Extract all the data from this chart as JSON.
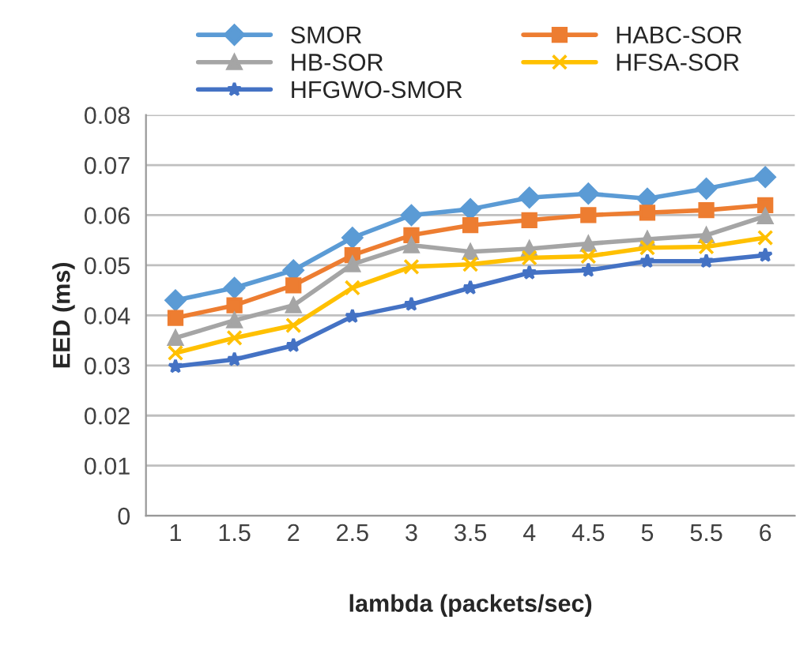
{
  "chart_data": {
    "type": "line",
    "xlabel": "lambda (packets/sec)",
    "ylabel": "EED (ms)",
    "categories": [
      "1",
      "1.5",
      "2",
      "2.5",
      "3",
      "3.5",
      "4",
      "4.5",
      "5",
      "5.5",
      "6"
    ],
    "ylim": [
      0,
      0.08
    ],
    "yticks": [
      {
        "value": 0,
        "label": "0"
      },
      {
        "value": 0.01,
        "label": "0.01"
      },
      {
        "value": 0.02,
        "label": "0.02"
      },
      {
        "value": 0.03,
        "label": "0.03"
      },
      {
        "value": 0.04,
        "label": "0.04"
      },
      {
        "value": 0.05,
        "label": "0.05"
      },
      {
        "value": 0.06,
        "label": "0.06"
      },
      {
        "value": 0.07,
        "label": "0.07"
      },
      {
        "value": 0.08,
        "label": "0.08"
      }
    ],
    "grid": "y",
    "legend": "top",
    "line_style": "solid",
    "series": [
      {
        "name": "SMOR",
        "color": "#5b9bd5",
        "marker": "diamond",
        "values": [
          0.043,
          0.0455,
          0.049,
          0.0555,
          0.06,
          0.0612,
          0.0635,
          0.0643,
          0.0633,
          0.0653,
          0.0676
        ]
      },
      {
        "name": "HABC-SOR",
        "color": "#ed7d31",
        "marker": "square",
        "values": [
          0.0395,
          0.042,
          0.046,
          0.052,
          0.056,
          0.058,
          0.059,
          0.06,
          0.0605,
          0.061,
          0.062
        ]
      },
      {
        "name": "HB-SOR",
        "color": "#a5a5a5",
        "marker": "triangle",
        "values": [
          0.0355,
          0.039,
          0.042,
          0.0502,
          0.054,
          0.0527,
          0.0533,
          0.0543,
          0.0552,
          0.056,
          0.0598
        ]
      },
      {
        "name": "HFSA-SOR",
        "color": "#ffc000",
        "marker": "cross",
        "values": [
          0.0325,
          0.0355,
          0.038,
          0.0455,
          0.0497,
          0.0502,
          0.0515,
          0.0518,
          0.0535,
          0.0537,
          0.0555
        ]
      },
      {
        "name": "HFGWO-SMOR",
        "color": "#4472c4",
        "marker": "star",
        "values": [
          0.0298,
          0.0312,
          0.034,
          0.0398,
          0.0422,
          0.0455,
          0.0485,
          0.049,
          0.0508,
          0.0508,
          0.052
        ]
      }
    ]
  }
}
